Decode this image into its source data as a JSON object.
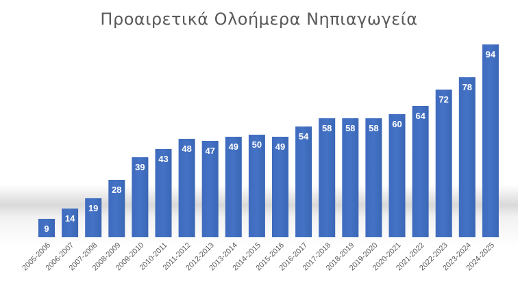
{
  "chart_data": {
    "type": "bar",
    "title": "Προαιρετικά Ολοήμερα Νηπιαγωγεία",
    "xlabel": "",
    "ylabel": "",
    "categories": [
      "2005-2006",
      "2006-2007",
      "2007-2008",
      "2008-2009",
      "2009-2010",
      "2010-2011",
      "2011-2012",
      "2012-2013",
      "2013-2014",
      "2014-2015",
      "2015-2016",
      "2016-2017",
      "2017-2018",
      "2018-2019",
      "2019-2020",
      "2020-2021",
      "2021-2022",
      "2022-2023",
      "2023-2024",
      "2024-2025"
    ],
    "values": [
      9,
      14,
      19,
      28,
      39,
      43,
      48,
      47,
      49,
      50,
      49,
      54,
      58,
      58,
      58,
      60,
      64,
      72,
      78,
      94
    ],
    "ylim": [
      0,
      100
    ],
    "grid": false,
    "legend": "none",
    "data_labels": true,
    "colors": {
      "bar": "#4472c4",
      "bar_dark": "#2f5597",
      "label": "#ffffff",
      "axis_text": "#595959",
      "title": "#595959"
    }
  }
}
